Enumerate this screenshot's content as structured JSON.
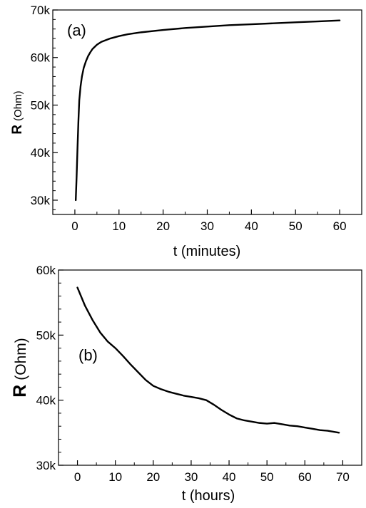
{
  "chart_data": [
    {
      "type": "line",
      "panel_label": "(a)",
      "xlabel": "t (minutes)",
      "ylabel_main": "R",
      "ylabel_unit": "(Ohm)",
      "xlim": [
        -5,
        65
      ],
      "ylim": [
        27,
        70
      ],
      "x_ticks": [
        0,
        10,
        20,
        30,
        40,
        50,
        60
      ],
      "x_tick_labels": [
        "0",
        "10",
        "20",
        "30",
        "40",
        "50",
        "60"
      ],
      "y_ticks": [
        30,
        40,
        50,
        60,
        70
      ],
      "y_tick_labels": [
        "30k",
        "40k",
        "50k",
        "60k",
        "70k"
      ],
      "y_units": "kOhm",
      "series": [
        {
          "x": [
            0.2,
            0.4,
            0.6,
            0.8,
            1.0,
            1.3,
            1.6,
            2.0,
            2.5,
            3.0,
            3.5,
            4.0,
            5.0,
            6.0,
            8.0,
            10,
            12,
            15,
            20,
            25,
            30,
            35,
            40,
            45,
            50,
            55,
            60
          ],
          "y": [
            30.0,
            35.0,
            41.0,
            46.5,
            51.0,
            54.0,
            56.0,
            57.8,
            59.2,
            60.3,
            61.1,
            61.8,
            62.7,
            63.3,
            64.0,
            64.5,
            64.9,
            65.3,
            65.8,
            66.2,
            66.5,
            66.8,
            67.0,
            67.2,
            67.4,
            67.6,
            67.8
          ]
        }
      ]
    },
    {
      "type": "line",
      "panel_label": "(b)",
      "xlabel": "t (hours)",
      "ylabel_main": "R",
      "ylabel_unit": "(Ohm)",
      "xlim": [
        -5,
        75
      ],
      "ylim": [
        30,
        60
      ],
      "x_ticks": [
        0,
        10,
        20,
        30,
        40,
        50,
        60,
        70
      ],
      "x_tick_labels": [
        "0",
        "10",
        "20",
        "30",
        "40",
        "50",
        "60",
        "70"
      ],
      "y_ticks": [
        30,
        40,
        50,
        60
      ],
      "y_tick_labels": [
        "30k",
        "40k",
        "50k",
        "60k"
      ],
      "y_units": "kOhm",
      "series": [
        {
          "x": [
            0,
            2,
            4,
            6,
            8,
            10,
            12,
            14,
            16,
            18,
            20,
            22,
            24,
            26,
            28,
            30,
            32,
            34,
            36,
            38,
            40,
            41,
            42,
            44,
            46,
            48,
            50,
            52,
            54,
            56,
            58,
            60,
            62,
            64,
            66,
            69
          ],
          "y": [
            57.3,
            54.5,
            52.3,
            50.4,
            49.0,
            48.0,
            46.8,
            45.5,
            44.3,
            43.1,
            42.2,
            41.7,
            41.3,
            41.0,
            40.7,
            40.5,
            40.3,
            40.0,
            39.3,
            38.5,
            37.8,
            37.5,
            37.2,
            36.9,
            36.7,
            36.5,
            36.4,
            36.5,
            36.3,
            36.1,
            36.0,
            35.8,
            35.6,
            35.4,
            35.3,
            35.0
          ]
        }
      ]
    }
  ]
}
